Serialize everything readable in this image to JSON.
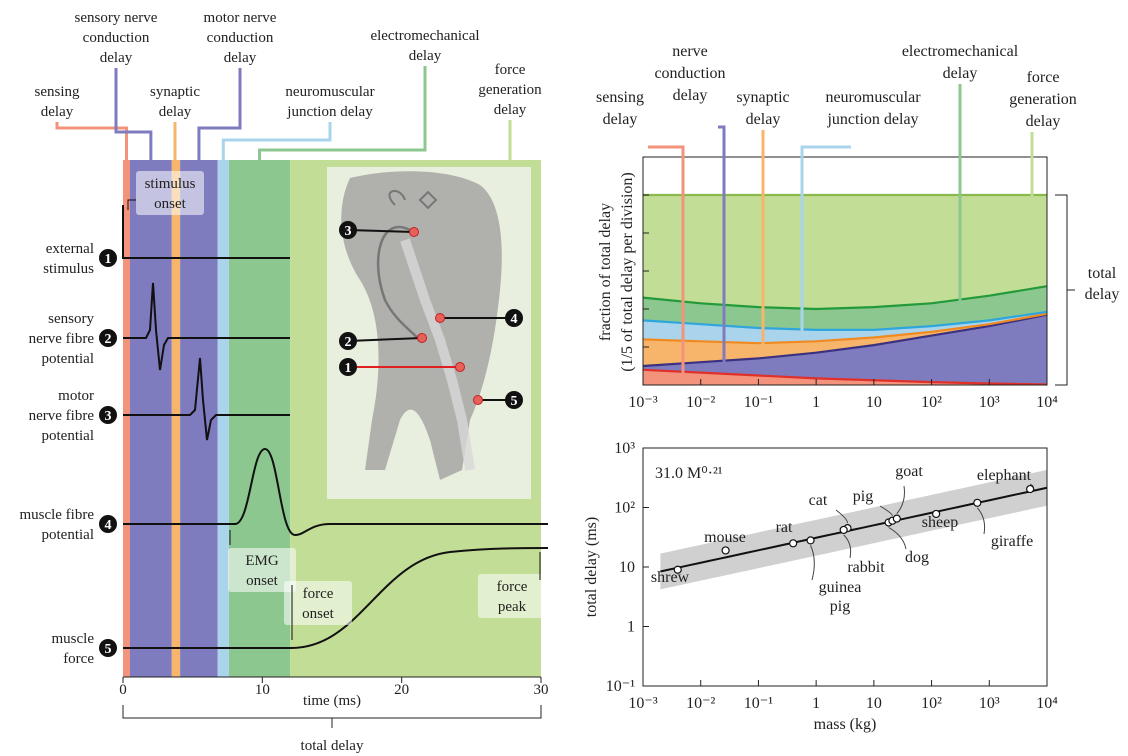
{
  "chart_data": [
    {
      "type": "delay-timeline",
      "xlabel": "time (ms)",
      "xlim": [
        0,
        30
      ],
      "xticks": [
        0,
        10,
        20,
        30
      ],
      "span_label": "total delay",
      "phases": [
        {
          "name": "sensing\ndelay",
          "color": "#f4937c",
          "start": 0,
          "end": 0.5
        },
        {
          "name": "sensory nerve\nconduction\ndelay",
          "color": "#7f7bbf",
          "start": 0.5,
          "end": 3.5
        },
        {
          "name": "synaptic\ndelay",
          "color": "#f7b56b",
          "start": 3.5,
          "end": 4.1
        },
        {
          "name": "motor nerve\nconduction\ndelay",
          "color": "#7f7bbf",
          "start": 4.1,
          "end": 6.8
        },
        {
          "name": "neuromuscular\njunction delay",
          "color": "#aad4ec",
          "start": 6.8,
          "end": 7.6
        },
        {
          "name": "electromechanical\ndelay",
          "color": "#8cc78f",
          "start": 7.6,
          "end": 12
        },
        {
          "name": "force\ngeneration\ndelay",
          "color": "#c2dd95",
          "start": 12,
          "end": 30
        }
      ],
      "traces": [
        {
          "number": "1",
          "name": "external\nstimulus"
        },
        {
          "number": "2",
          "name": "sensory\nnerve fibre\npotential"
        },
        {
          "number": "3",
          "name": "motor\nnerve fibre\npotential"
        },
        {
          "number": "4",
          "name": "muscle fibre\npotential"
        },
        {
          "number": "5",
          "name": "muscle\nforce"
        }
      ],
      "annotations": [
        "stimulus\nonset",
        "EMG\nonset",
        "force\nonset",
        "force\npeak"
      ],
      "inset_markers": [
        "1",
        "2",
        "3",
        "4",
        "5"
      ]
    },
    {
      "type": "stacked-area",
      "ylabel": "fraction of total delay\n(1/5 of total delay per division)",
      "bracket_label": "total\ndelay",
      "xscale": "log",
      "x": [
        0.001,
        0.01,
        0.1,
        1,
        10,
        100,
        1000,
        10000
      ],
      "xlim": [
        0.001,
        10000
      ],
      "xticks": [
        {
          "value": 0.001,
          "label": "10⁻³"
        },
        {
          "value": 0.01,
          "label": "10⁻²"
        },
        {
          "value": 0.1,
          "label": "10⁻¹"
        },
        1,
        10,
        {
          "value": 100,
          "label": "10²"
        },
        {
          "value": 1000,
          "label": "10³"
        },
        {
          "value": 10000,
          "label": "10⁴"
        }
      ],
      "ylim": [
        0,
        1.2
      ],
      "yticks": [
        0,
        0.2,
        0.4,
        0.6,
        0.8,
        1.0
      ],
      "series": [
        {
          "name": "sensing\ndelay",
          "color": "#f4937c",
          "line_color": "#e0302a",
          "values": [
            0.08,
            0.065,
            0.05,
            0.035,
            0.025,
            0.015,
            0.008,
            0.003
          ]
        },
        {
          "name": "nerve\nconduction\ndelay",
          "color": "#7f7bbf",
          "line_color": "#3a3280",
          "values": [
            0.02,
            0.055,
            0.09,
            0.135,
            0.185,
            0.245,
            0.302,
            0.367
          ]
        },
        {
          "name": "synaptic\ndelay",
          "color": "#f7b56b",
          "line_color": "#f08a20",
          "values": [
            0.14,
            0.11,
            0.08,
            0.06,
            0.04,
            0.02,
            0.01,
            0.005
          ]
        },
        {
          "name": "neuromuscular\njunction delay",
          "color": "#aad4ec",
          "line_color": "#2ea6dc",
          "values": [
            0.1,
            0.09,
            0.08,
            0.06,
            0.04,
            0.03,
            0.02,
            0.01
          ]
        },
        {
          "name": "electromechanical\ndelay",
          "color": "#8cc78f",
          "line_color": "#229a3a",
          "values": [
            0.12,
            0.11,
            0.11,
            0.11,
            0.12,
            0.12,
            0.13,
            0.135
          ]
        },
        {
          "name": "force\ngeneration\ndelay",
          "color": "#c2dd95",
          "line_color": "#8ab84a",
          "values": [
            0.54,
            0.57,
            0.59,
            0.6,
            0.59,
            0.57,
            0.53,
            0.48
          ]
        }
      ]
    },
    {
      "type": "scatter",
      "xlabel": "mass (kg)",
      "ylabel": "total delay (ms)",
      "xscale": "log",
      "yscale": "log",
      "xlim": [
        0.001,
        10000
      ],
      "xticks": [
        {
          "value": 0.001,
          "label": "10⁻³"
        },
        {
          "value": 0.01,
          "label": "10⁻²"
        },
        {
          "value": 0.1,
          "label": "10⁻¹"
        },
        1,
        10,
        {
          "value": 100,
          "label": "10²"
        },
        {
          "value": 1000,
          "label": "10³"
        },
        {
          "value": 10000,
          "label": "10⁴"
        }
      ],
      "ylim": [
        0.1,
        1000
      ],
      "yticks": [
        {
          "value": 0.1,
          "label": "10⁻¹"
        },
        1,
        10,
        {
          "value": 100,
          "label": "10²"
        },
        {
          "value": 1000,
          "label": "10³"
        }
      ],
      "fit_label": "31.0 M⁰·²¹",
      "fit": {
        "coefficient": 31.0,
        "exponent": 0.21
      },
      "band_factor": 2,
      "band_x": [
        0.002,
        10000
      ],
      "points": [
        {
          "name": "shrew",
          "x": 0.004,
          "y": 9
        },
        {
          "name": "mouse",
          "x": 0.027,
          "y": 19
        },
        {
          "name": "rat",
          "x": 0.4,
          "y": 25
        },
        {
          "name": "guinea\npig",
          "x": 0.8,
          "y": 28
        },
        {
          "name": "cat",
          "x": 3.5,
          "y": 45
        },
        {
          "name": "rabbit",
          "x": 3.0,
          "y": 42
        },
        {
          "name": "dog",
          "x": 18,
          "y": 56
        },
        {
          "name": "pig",
          "x": 21,
          "y": 60
        },
        {
          "name": "goat",
          "x": 25,
          "y": 65
        },
        {
          "name": "sheep",
          "x": 120,
          "y": 78
        },
        {
          "name": "giraffe",
          "x": 620,
          "y": 120
        },
        {
          "name": "elephant",
          "x": 5100,
          "y": 204
        }
      ]
    }
  ]
}
